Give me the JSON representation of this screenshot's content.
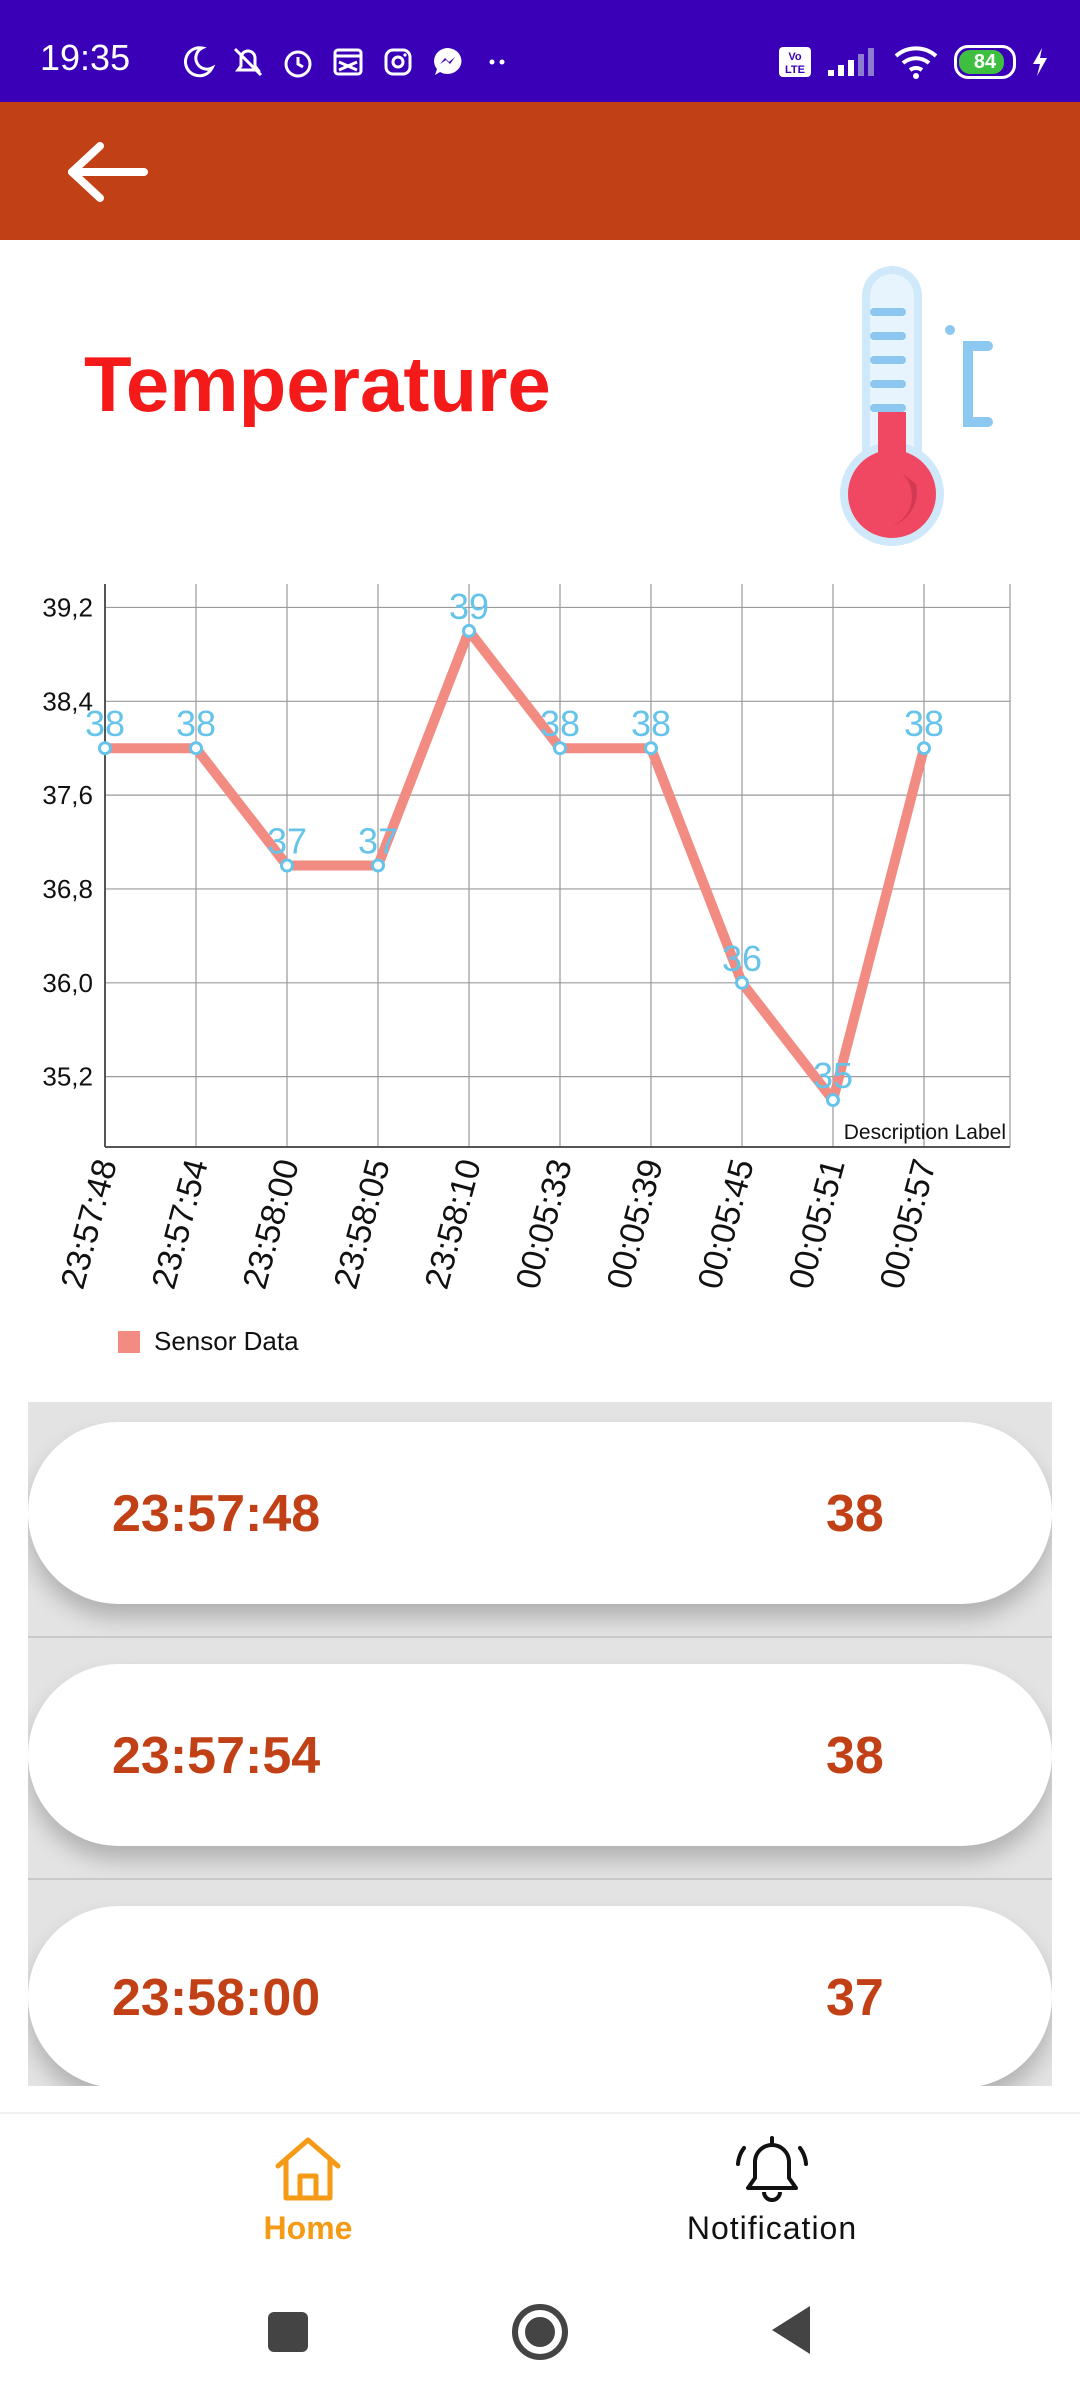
{
  "status_bar": {
    "time": "19:35",
    "battery_level": "84",
    "icons_left": [
      "moon-icon",
      "bell-off-icon",
      "alarm-icon",
      "app-icon",
      "instagram-icon",
      "messenger-icon",
      "more-icon"
    ],
    "icons_right": [
      "volte-icon",
      "signal-icon",
      "wifi-icon",
      "battery-icon",
      "charging-icon"
    ]
  },
  "app_bar": {
    "back_icon": "arrow-left-icon"
  },
  "page": {
    "title": "Temperature",
    "title_color": "#f41a1a"
  },
  "chart_data": {
    "type": "line",
    "categories": [
      "23:57:48",
      "23:57:54",
      "23:58:00",
      "23:58:05",
      "23:58:10",
      "00:05:33",
      "00:05:39",
      "00:05:45",
      "00:05:51",
      "00:05:57"
    ],
    "series": [
      {
        "name": "Sensor Data",
        "values": [
          38,
          38,
          37,
          37,
          39,
          38,
          38,
          36,
          35,
          38
        ],
        "color": "#f28b82"
      }
    ],
    "point_label_color": "#66c4ea",
    "y_ticks": [
      "39,2",
      "38,4",
      "37,6",
      "36,8",
      "36,0",
      "35,2"
    ],
    "y_tick_values": [
      39.2,
      38.4,
      37.6,
      36.8,
      36.0,
      35.2
    ],
    "ylim": [
      34.6,
      39.4
    ],
    "description": "Description Label",
    "grid": true,
    "legend_position": "bottom-left"
  },
  "list": {
    "rows": [
      {
        "time": "23:57:48",
        "value": "38"
      },
      {
        "time": "23:57:54",
        "value": "38"
      },
      {
        "time": "23:58:00",
        "value": "37"
      }
    ]
  },
  "bottom_nav": {
    "items": [
      {
        "label": "Home",
        "icon": "home-icon",
        "active": true
      },
      {
        "label": "Notification",
        "icon": "bell-icon",
        "active": false
      }
    ]
  },
  "system_nav": {
    "buttons": [
      "recents-button",
      "home-button",
      "back-button"
    ]
  }
}
